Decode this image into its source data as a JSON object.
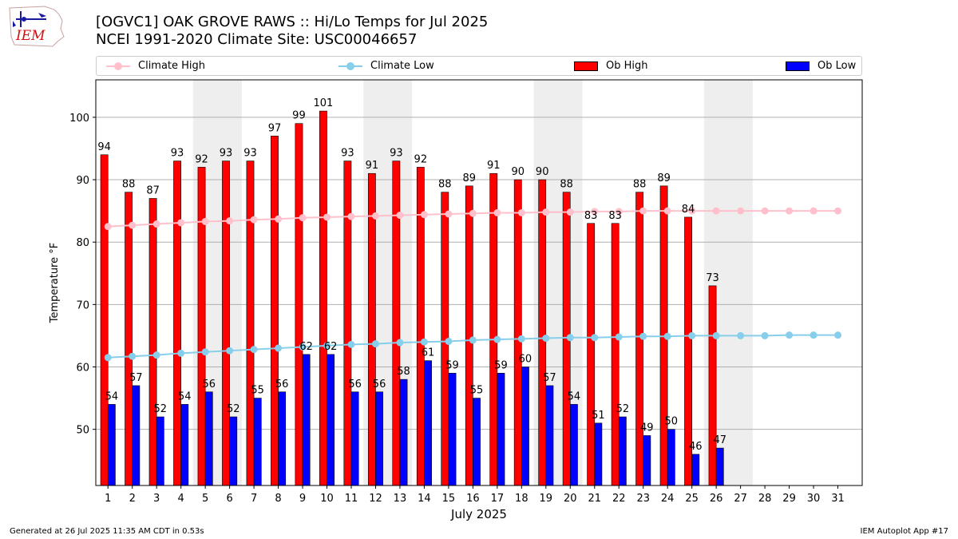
{
  "header": {
    "logo_text": "IEM",
    "title_line1": "[OGVC1] OAK GROVE RAWS :: Hi/Lo Temps for Jul 2025",
    "title_line2": "NCEI 1991-2020 Climate Site: USC00046657"
  },
  "legend": {
    "climate_high": "Climate High",
    "climate_low": "Climate Low",
    "ob_high": "Ob High",
    "ob_low": "Ob Low"
  },
  "footer": {
    "generated": "Generated at 26 Jul 2025 11:35 AM CDT in 0.53s",
    "app": "IEM Autoplot App #17"
  },
  "chart_data": {
    "type": "bar",
    "xlabel": "July 2025",
    "ylabel": "Temperature °F",
    "ylim": [
      41,
      106
    ],
    "yticks": [
      50,
      60,
      70,
      80,
      90,
      100
    ],
    "grid": true,
    "legend_position": "top",
    "categories": [
      "1",
      "2",
      "3",
      "4",
      "5",
      "6",
      "7",
      "8",
      "9",
      "10",
      "11",
      "12",
      "13",
      "14",
      "15",
      "16",
      "17",
      "18",
      "19",
      "20",
      "21",
      "22",
      "23",
      "24",
      "25",
      "26",
      "27",
      "28",
      "29",
      "30",
      "31"
    ],
    "weekend_shading": [
      [
        5,
        6
      ],
      [
        12,
        13
      ],
      [
        19,
        20
      ],
      [
        26,
        27
      ]
    ],
    "colors": {
      "ob_high": "#ff0000",
      "ob_low": "#0000ff",
      "climate_high": "#ffc0cb",
      "climate_low": "#87ceeb",
      "weekend": "#eeeeee",
      "grid": "#b0b0b0"
    },
    "series": [
      {
        "name": "Ob High",
        "kind": "bar",
        "values": [
          94,
          88,
          87,
          93,
          92,
          93,
          93,
          97,
          99,
          101,
          93,
          91,
          93,
          92,
          88,
          89,
          91,
          90,
          90,
          88,
          83,
          83,
          88,
          89,
          84,
          73,
          null,
          null,
          null,
          null,
          null
        ]
      },
      {
        "name": "Ob Low",
        "kind": "bar",
        "values": [
          54,
          57,
          52,
          54,
          56,
          52,
          55,
          56,
          62,
          62,
          56,
          56,
          58,
          61,
          59,
          55,
          59,
          60,
          57,
          54,
          51,
          52,
          49,
          50,
          46,
          47,
          null,
          null,
          null,
          null,
          null
        ]
      },
      {
        "name": "Climate High",
        "kind": "line",
        "values": [
          82.5,
          82.7,
          82.9,
          83.1,
          83.3,
          83.4,
          83.6,
          83.7,
          83.9,
          84.0,
          84.1,
          84.2,
          84.3,
          84.4,
          84.5,
          84.6,
          84.7,
          84.7,
          84.8,
          84.8,
          84.9,
          84.9,
          85.0,
          85.0,
          85.0,
          85.0,
          85.0,
          85.0,
          85.0,
          85.0,
          85.0
        ]
      },
      {
        "name": "Climate Low",
        "kind": "line",
        "values": [
          61.5,
          61.7,
          61.9,
          62.2,
          62.4,
          62.6,
          62.8,
          63.0,
          63.2,
          63.4,
          63.6,
          63.7,
          63.9,
          64.0,
          64.1,
          64.3,
          64.4,
          64.5,
          64.6,
          64.7,
          64.7,
          64.8,
          64.9,
          64.9,
          65.0,
          65.0,
          65.0,
          65.0,
          65.1,
          65.1,
          65.1
        ]
      }
    ]
  }
}
